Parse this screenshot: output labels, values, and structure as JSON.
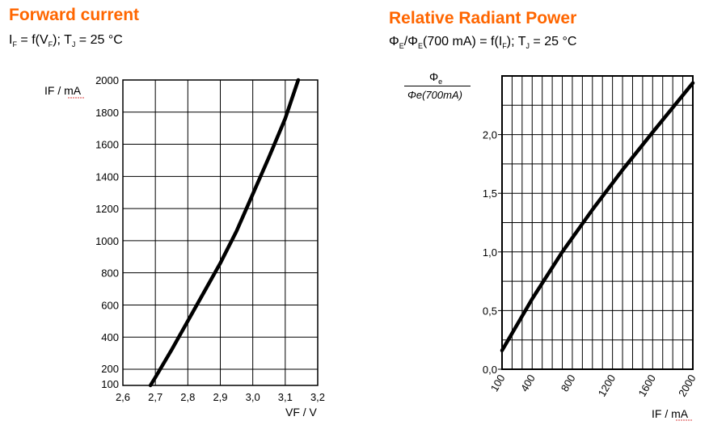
{
  "left": {
    "title": "Forward current",
    "subtitle": {
      "if": "I",
      "if_sub": "F",
      "eq": " = f(V",
      "vf_sub": "F",
      "rest": "); T",
      "tj_sub": "J",
      "temp": " = 25 °C"
    }
  },
  "right": {
    "title": "Relative Radiant Power",
    "subtitle": {
      "phi1": "Φ",
      "phi1_sub": "E",
      "slash": "/Φ",
      "phi2_sub": "E",
      "mid": "(700 mA) = f(I",
      "if_sub": "F",
      "rest": "); T",
      "tj_sub": "J",
      "temp": " = 25 °C"
    },
    "ylabel_num": "Φ",
    "ylabel_num_sub": "e",
    "ylabel_den": "Φe(700mA)"
  },
  "chart_data": [
    {
      "type": "line",
      "title": "Forward current",
      "xlabel": "VF / V",
      "ylabel": "IF / mA",
      "xlim": [
        2.6,
        3.2
      ],
      "ylim": [
        100,
        2000
      ],
      "grid": true,
      "x_ticks": [
        2.6,
        2.7,
        2.8,
        2.9,
        3.0,
        3.1,
        3.2
      ],
      "x_tick_labels": [
        "2,6",
        "2,7",
        "2,8",
        "2,9",
        "3,0",
        "3,1",
        "3,2"
      ],
      "y_ticks": [
        100,
        200,
        400,
        600,
        800,
        1000,
        1200,
        1400,
        1600,
        1800,
        2000
      ],
      "y_tick_labels": [
        "100",
        "200",
        "400",
        "600",
        "800",
        "1000",
        "1200",
        "1400",
        "1600",
        "1800",
        "2000"
      ],
      "series": [
        {
          "x": [
            2.685,
            2.7,
            2.75,
            2.8,
            2.85,
            2.9,
            2.95,
            3.0,
            3.05,
            3.1,
            3.14
          ],
          "y": [
            100,
            150,
            320,
            500,
            680,
            860,
            1060,
            1290,
            1520,
            1760,
            2000
          ]
        }
      ]
    },
    {
      "type": "line",
      "title": "Relative Radiant Power",
      "xlabel": "IF / mA",
      "ylabel": "Φe / Φe(700mA)",
      "xlim": [
        100,
        2000
      ],
      "ylim": [
        0,
        2.5
      ],
      "grid": true,
      "x_ticks": [
        100,
        400,
        800,
        1200,
        1600,
        2000
      ],
      "x_tick_labels": [
        "100",
        "400",
        "800",
        "1200",
        "1600",
        "2000"
      ],
      "y_ticks": [
        0,
        0.5,
        1.0,
        1.5,
        2.0
      ],
      "y_tick_labels": [
        "0,0",
        "0,5",
        "1,0",
        "1,5",
        "2,0"
      ],
      "series": [
        {
          "x": [
            100,
            400,
            700,
            1000,
            1300,
            1600,
            2000
          ],
          "y": [
            0.16,
            0.6,
            1.0,
            1.36,
            1.7,
            2.02,
            2.44
          ]
        }
      ]
    }
  ]
}
